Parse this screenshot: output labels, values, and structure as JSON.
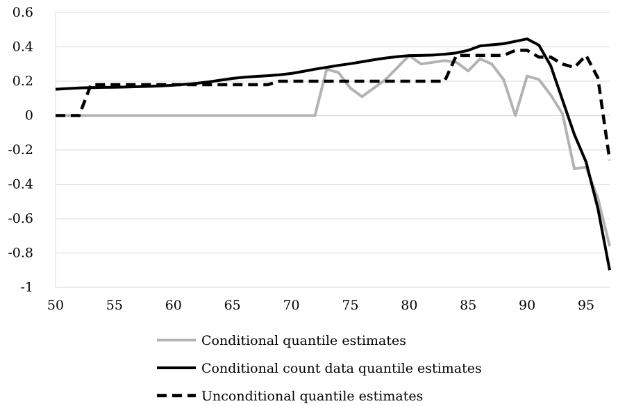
{
  "chart_data": {
    "type": "line",
    "title": "",
    "xlabel": "",
    "ylabel": "",
    "xlim": [
      50,
      97
    ],
    "ylim": [
      -1,
      0.6
    ],
    "grid": "horizontal",
    "legend_position": "bottom",
    "x_ticks": [
      "50",
      "55",
      "60",
      "65",
      "70",
      "75",
      "80",
      "85",
      "90",
      "95"
    ],
    "y_ticks": [
      "0.6",
      "0.4",
      "0.2",
      "0",
      "-0.2",
      "-0.4",
      "-0.6",
      "-0.8",
      "-1"
    ],
    "x": [
      50,
      51,
      52,
      53,
      54,
      55,
      56,
      57,
      58,
      59,
      60,
      61,
      62,
      63,
      64,
      65,
      66,
      67,
      68,
      69,
      70,
      71,
      72,
      73,
      74,
      75,
      76,
      77,
      78,
      79,
      80,
      81,
      82,
      83,
      84,
      85,
      86,
      87,
      88,
      89,
      90,
      91,
      92,
      93,
      94,
      95,
      96,
      97
    ],
    "series": [
      {
        "name": "Conditional quantile estimates",
        "color": "#b3b3b3",
        "style": "solid",
        "values": [
          0,
          0,
          0,
          0,
          0,
          0,
          0,
          0,
          0,
          0,
          0,
          0,
          0,
          0,
          0,
          0,
          0,
          0,
          0,
          0,
          0,
          0,
          0,
          0.27,
          0.25,
          0.16,
          0.11,
          0.16,
          0.21,
          0.28,
          0.35,
          0.3,
          0.31,
          0.32,
          0.31,
          0.26,
          0.33,
          0.3,
          0.21,
          0.0,
          0.23,
          0.21,
          0.12,
          0.01,
          -0.31,
          -0.3,
          -0.48,
          -0.76
        ]
      },
      {
        "name": "Conditional count data quantile estimates",
        "color": "#000000",
        "style": "solid",
        "values": [
          0.153,
          0.157,
          0.161,
          0.163,
          0.164,
          0.165,
          0.166,
          0.168,
          0.17,
          0.173,
          0.177,
          0.182,
          0.188,
          0.196,
          0.206,
          0.216,
          0.223,
          0.228,
          0.232,
          0.237,
          0.245,
          0.257,
          0.27,
          0.281,
          0.292,
          0.302,
          0.313,
          0.325,
          0.335,
          0.343,
          0.349,
          0.35,
          0.352,
          0.357,
          0.365,
          0.38,
          0.405,
          0.412,
          0.418,
          0.432,
          0.446,
          0.41,
          0.29,
          0.09,
          -0.11,
          -0.27,
          -0.54,
          -0.9
        ]
      },
      {
        "name": "Unconditional quantile estimates",
        "color": "#000000",
        "style": "dashed",
        "values": [
          0,
          0,
          0,
          0.18,
          0.18,
          0.18,
          0.18,
          0.18,
          0.18,
          0.18,
          0.18,
          0.18,
          0.18,
          0.18,
          0.18,
          0.18,
          0.18,
          0.18,
          0.18,
          0.2,
          0.2,
          0.2,
          0.2,
          0.2,
          0.2,
          0.2,
          0.2,
          0.2,
          0.2,
          0.2,
          0.2,
          0.2,
          0.2,
          0.2,
          0.35,
          0.35,
          0.35,
          0.35,
          0.35,
          0.38,
          0.38,
          0.34,
          0.34,
          0.3,
          0.28,
          0.35,
          0.22,
          -0.26
        ]
      }
    ]
  }
}
